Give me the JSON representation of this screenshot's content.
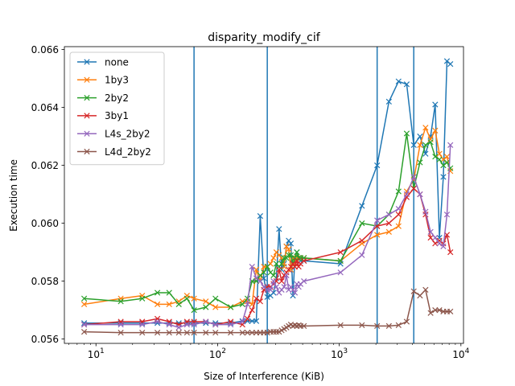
{
  "chart_data": {
    "type": "line",
    "title": "disparity_modify_cif",
    "xlabel": "Size of Interference (KiB)",
    "ylabel": "Execution time",
    "x_scale": "log",
    "xlim": [
      5.5,
      10500
    ],
    "ylim": [
      0.05585,
      0.0661
    ],
    "x_tick_labels": [
      {
        "value": 10,
        "base": "10",
        "exp": "1"
      },
      {
        "value": 100,
        "base": "10",
        "exp": "2"
      },
      {
        "value": 1000,
        "base": "10",
        "exp": "3"
      },
      {
        "value": 10000,
        "base": "10",
        "exp": "4"
      }
    ],
    "y_ticks": [
      0.056,
      0.058,
      0.06,
      0.062,
      0.064,
      0.066
    ],
    "y_tick_labels": [
      "0.056",
      "0.058",
      "0.060",
      "0.062",
      "0.064",
      "0.066"
    ],
    "vlines": [
      64,
      256,
      2048,
      4096
    ],
    "vline_color": "#1f77b4",
    "marker": "x",
    "legend_position": "upper left",
    "x": [
      8,
      16,
      24,
      32,
      40,
      48,
      56,
      64,
      80,
      96,
      128,
      160,
      176,
      192,
      208,
      224,
      240,
      256,
      272,
      288,
      304,
      320,
      336,
      352,
      368,
      384,
      400,
      416,
      432,
      448,
      464,
      480,
      512,
      1024,
      1536,
      2048,
      2560,
      3072,
      3584,
      4096,
      4608,
      5120,
      5632,
      6144,
      6656,
      7168,
      7680,
      8192
    ],
    "series": [
      {
        "name": "none",
        "color": "#1f77b4",
        "values": [
          0.05655,
          0.05655,
          0.05655,
          0.05655,
          0.05655,
          0.05655,
          0.05655,
          0.05655,
          0.05655,
          0.05655,
          0.05655,
          0.05662,
          0.05662,
          0.05662,
          0.05662,
          0.06025,
          0.0581,
          0.05745,
          0.0575,
          0.0576,
          0.0581,
          0.0598,
          0.0584,
          0.0586,
          0.0592,
          0.0594,
          0.0593,
          0.0575,
          0.0588,
          0.059,
          0.0588,
          0.0587,
          0.0587,
          0.0586,
          0.0606,
          0.062,
          0.0642,
          0.0649,
          0.0648,
          0.0627,
          0.063,
          0.0624,
          0.063,
          0.0641,
          0.0595,
          0.0616,
          0.0656,
          0.0655
        ]
      },
      {
        "name": "1by3",
        "color": "#ff7f0e",
        "values": [
          0.0572,
          0.0574,
          0.0575,
          0.0572,
          0.0572,
          0.0573,
          0.0575,
          0.0574,
          0.0573,
          0.0571,
          0.0571,
          0.0573,
          0.0573,
          0.0572,
          0.0584,
          0.058,
          0.0585,
          0.0585,
          0.0586,
          0.0588,
          0.059,
          0.0589,
          0.0588,
          0.0585,
          0.0592,
          0.0591,
          0.0584,
          0.0588,
          0.0586,
          0.0588,
          0.0588,
          0.0588,
          0.0588,
          0.0587,
          0.0593,
          0.0596,
          0.0597,
          0.0599,
          0.0611,
          0.0615,
          0.0627,
          0.0633,
          0.0629,
          0.0632,
          0.0624,
          0.0622,
          0.0623,
          0.0618
        ]
      },
      {
        "name": "2by2",
        "color": "#2ca02c",
        "values": [
          0.0574,
          0.0573,
          0.0574,
          0.0576,
          0.0576,
          0.0572,
          0.0574,
          0.057,
          0.0571,
          0.0574,
          0.0571,
          0.0572,
          0.0574,
          0.058,
          0.058,
          0.0582,
          0.0583,
          0.0585,
          0.0583,
          0.0582,
          0.0586,
          0.0585,
          0.0586,
          0.0588,
          0.0588,
          0.0589,
          0.0589,
          0.0586,
          0.0588,
          0.059,
          0.0588,
          0.0588,
          0.0588,
          0.0587,
          0.06,
          0.0599,
          0.0603,
          0.0611,
          0.0631,
          0.0612,
          0.0621,
          0.0627,
          0.0628,
          0.0623,
          0.0622,
          0.062,
          0.0621,
          0.0619
        ]
      },
      {
        "name": "3by1",
        "color": "#d62728",
        "values": [
          0.0565,
          0.0566,
          0.0566,
          0.0567,
          0.0566,
          0.0565,
          0.0566,
          0.0566,
          0.0566,
          0.0565,
          0.0566,
          0.0565,
          0.0567,
          0.057,
          0.0574,
          0.0573,
          0.0577,
          0.0578,
          0.0578,
          0.0579,
          0.058,
          0.0584,
          0.058,
          0.0582,
          0.0583,
          0.0584,
          0.0585,
          0.0586,
          0.0585,
          0.0587,
          0.0585,
          0.0586,
          0.0587,
          0.059,
          0.0594,
          0.0599,
          0.06,
          0.0603,
          0.0609,
          0.0612,
          0.061,
          0.0603,
          0.0595,
          0.0593,
          0.0594,
          0.0593,
          0.0596,
          0.059
        ]
      },
      {
        "name": "L4s_2by2",
        "color": "#9467bd",
        "values": [
          0.0565,
          0.0565,
          0.0565,
          0.0566,
          0.0565,
          0.0564,
          0.0565,
          0.0565,
          0.0566,
          0.0565,
          0.0565,
          0.0566,
          0.0572,
          0.0585,
          0.0581,
          0.058,
          0.0578,
          0.0577,
          0.0577,
          0.058,
          0.0578,
          0.0576,
          0.0577,
          0.0578,
          0.0582,
          0.0577,
          0.0578,
          0.0577,
          0.0576,
          0.0579,
          0.0578,
          0.0579,
          0.058,
          0.0583,
          0.0589,
          0.0601,
          0.0603,
          0.0605,
          0.061,
          0.0616,
          0.061,
          0.0604,
          0.0597,
          0.0595,
          0.0593,
          0.0592,
          0.0603,
          0.0627
        ]
      },
      {
        "name": "L4d_2by2",
        "color": "#8c564b",
        "values": [
          0.05625,
          0.05622,
          0.05622,
          0.05622,
          0.05622,
          0.05622,
          0.05622,
          0.05622,
          0.05622,
          0.05622,
          0.05622,
          0.05622,
          0.05622,
          0.05622,
          0.05622,
          0.05622,
          0.05622,
          0.05622,
          0.05625,
          0.05625,
          0.05625,
          0.05625,
          0.0563,
          0.05635,
          0.0564,
          0.05645,
          0.0565,
          0.05645,
          0.05648,
          0.05645,
          0.05648,
          0.05645,
          0.05645,
          0.05648,
          0.05648,
          0.05645,
          0.05645,
          0.05648,
          0.0566,
          0.05765,
          0.0575,
          0.0577,
          0.0569,
          0.057,
          0.057,
          0.05695,
          0.05695,
          0.05695
        ]
      }
    ]
  }
}
